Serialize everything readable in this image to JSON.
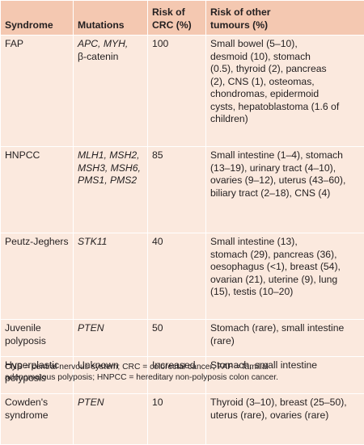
{
  "headers": {
    "syndrome": "Syndrome",
    "mutations": "Mutations",
    "crc": [
      "Risk of",
      "CRC (%)"
    ],
    "other": [
      "Risk of other",
      "tumours (%)"
    ]
  },
  "rows": [
    {
      "syndrome": [
        "FAP"
      ],
      "mutations": [
        "APC, MYH,",
        "β-catenin"
      ],
      "risk": "100",
      "other": [
        "Small bowel (5–10),",
        "desmoid (10), stomach",
        "(0.5), thyroid (2), pancreas",
        "(2), CNS (1), osteomas,",
        "chondromas, epidermoid",
        "cysts, hepatoblastoma (1.6 of",
        "children)"
      ]
    },
    {
      "syndrome": [
        "HNPCC"
      ],
      "mutations": [
        "MLH1, MSH2,",
        "MSH3, MSH6,",
        "PMS1, PMS2"
      ],
      "risk": "85",
      "other": [
        "Small intestine (1–4), stomach",
        "(13–19), urinary tract (4–10),",
        "ovaries (9–12), uterus (43–60),",
        "biliary tract (2–18), CNS (4)"
      ]
    },
    {
      "syndrome": [
        "Peutz-Jeghers"
      ],
      "mutations": [
        "STK11"
      ],
      "risk": "40",
      "other": [
        "Small intestine (13),",
        "stomach (29), pancreas (36),",
        "oesophagus (<1), breast (54),",
        "ovarian (21), uterine (9), lung",
        "(15), testis (10–20)"
      ]
    },
    {
      "syndrome": [
        "Juvenile",
        "polyposis"
      ],
      "mutations": [
        "PTEN"
      ],
      "risk": "50",
      "other": [
        "Stomach (rare), small intestine",
        "(rare)"
      ]
    },
    {
      "syndrome": [
        "Hyperplastic",
        "polyposis"
      ],
      "mutations": [
        "Unknown"
      ],
      "risk": "Increased",
      "other": [
        "Stomach, small intestine"
      ]
    },
    {
      "syndrome": [
        "Cowden's",
        "syndrome"
      ],
      "mutations": [
        "PTEN"
      ],
      "risk": "10",
      "other": [
        "Thyroid (3–10), breast (25–50),",
        "uterus (rare), ovaries (rare)"
      ]
    }
  ],
  "footnote": [
    "CNS = central nervous system; CRC = colorectal cancer; FAP = familial",
    "adenomatous polyposis; HNPCC = hereditary non-polyposis colon cancer."
  ]
}
